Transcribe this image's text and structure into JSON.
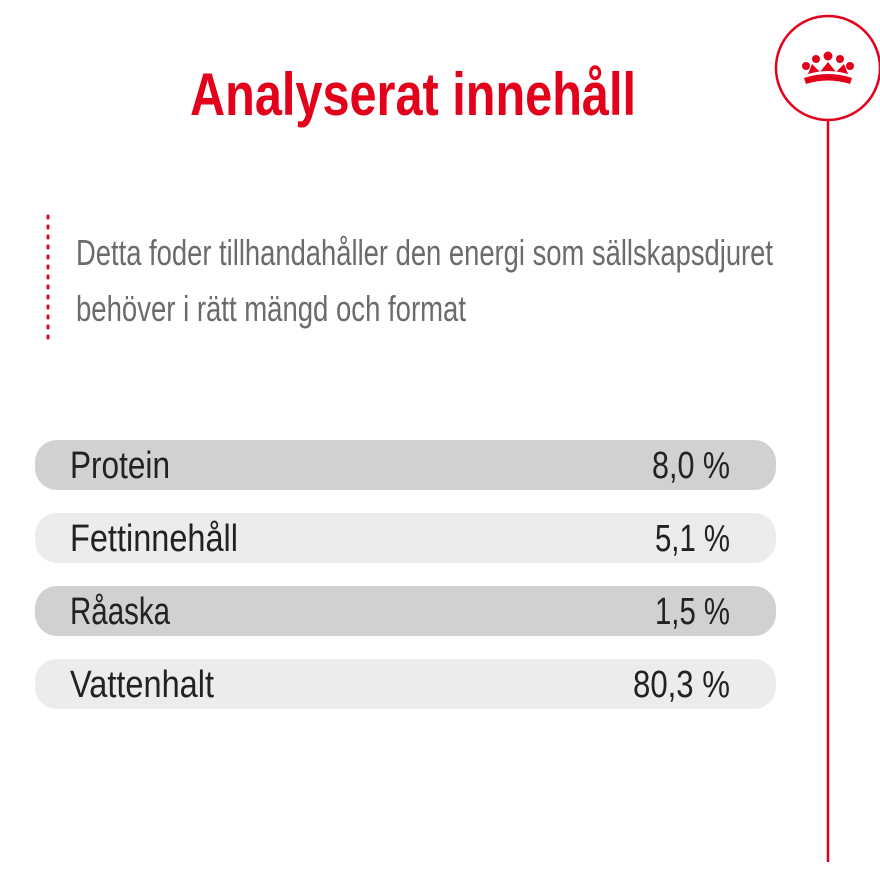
{
  "title": "Analyserat innehåll",
  "description": [
    "Detta foder tillhandahåller den energi som sällskapsdjuret",
    "behöver i rätt mängd och format"
  ],
  "table": {
    "rows": [
      [
        "Protein",
        "8,0 %"
      ],
      [
        "Fettinnehåll",
        "5,1 %"
      ],
      [
        "Råaska",
        "1,5 %"
      ],
      [
        "Vattenhalt",
        "80,3 %"
      ]
    ]
  }
}
